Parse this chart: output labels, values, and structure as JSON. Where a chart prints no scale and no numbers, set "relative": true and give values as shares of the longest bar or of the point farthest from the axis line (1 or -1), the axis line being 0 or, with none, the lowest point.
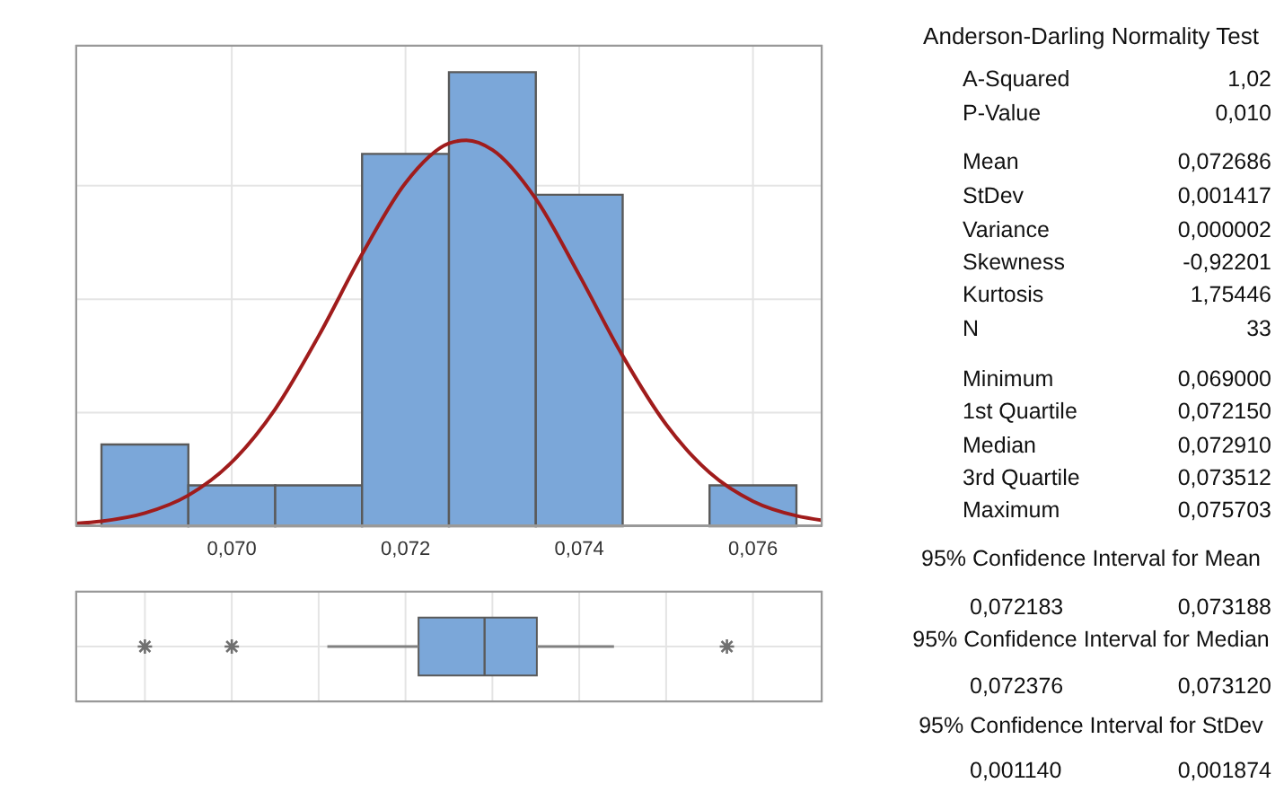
{
  "chart_data": [
    {
      "type": "histogram",
      "relative": true,
      "bins": [
        0.0685,
        0.0695,
        0.0705,
        0.0715,
        0.0725,
        0.0735,
        0.0745,
        0.0755,
        0.0765
      ],
      "values": [
        0.18,
        0.09,
        0.09,
        0.82,
        1,
        0.73,
        0,
        0.09
      ],
      "color": "#7ba7d9",
      "xlim": [
        0.0682,
        0.0768
      ],
      "xticks": [
        {
          "value": 0.07,
          "label": "0,070"
        },
        {
          "value": 0.072,
          "label": "0,072"
        },
        {
          "value": 0.074,
          "label": "0,074"
        },
        {
          "value": 0.076,
          "label": "0,076"
        }
      ],
      "grid": true,
      "series": [
        {
          "type": "line",
          "color": "#a01c1c",
          "x": [
            0.0682,
            0.0685,
            0.069,
            0.0695,
            0.07,
            0.0705,
            0.071,
            0.0715,
            0.072,
            0.0725,
            0.0727,
            0.073,
            0.0735,
            0.074,
            0.0745,
            0.075,
            0.0755,
            0.076,
            0.0765,
            0.0768
          ],
          "values": [
            0.006,
            0.011,
            0.029,
            0.068,
            0.141,
            0.258,
            0.419,
            0.599,
            0.756,
            0.843,
            0.85,
            0.829,
            0.721,
            0.553,
            0.375,
            0.224,
            0.118,
            0.055,
            0.023,
            0.013
          ]
        }
      ]
    },
    {
      "type": "box",
      "orientation": "horizontal",
      "categories": [
        null
      ],
      "color": "#7ba7d9",
      "boxes": [
        {
          "low": 0.0711,
          "q1": 0.07215,
          "median": 0.07291,
          "q3": 0.073512,
          "high": 0.0744,
          "outliers": [
            0.069,
            0.07,
            0.0757
          ]
        }
      ],
      "xlim": [
        0.0682,
        0.0768
      ],
      "xticks": [
        {
          "value": 0.069,
          "label": null
        },
        {
          "value": 0.07,
          "label": null
        },
        {
          "value": 0.071,
          "label": null
        },
        {
          "value": 0.072,
          "label": null
        },
        {
          "value": 0.073,
          "label": null
        },
        {
          "value": 0.074,
          "label": null
        },
        {
          "value": 0.075,
          "label": null
        },
        {
          "value": 0.076,
          "label": null
        }
      ],
      "tick_labels": false,
      "grid": true
    },
    {
      "type": "other",
      "title": "Anderson-Darling Normality Test",
      "annotations": [
        "A-Squared",
        "1,02",
        "P-Value",
        "0,010",
        "Mean",
        "0,072686",
        "StDev",
        "0,001417",
        "Variance",
        "0,000002",
        "Skewness",
        "-0,92201",
        "Kurtosis",
        "1,75446",
        "N",
        "33",
        "Minimum",
        "0,069000",
        "1st Quartile",
        "0,072150",
        "Median",
        "0,072910",
        "3rd Quartile",
        "0,073512",
        "Maximum",
        "0,075703",
        "95% Confidence Interval for Mean",
        "0,072183",
        "0,073188",
        "95% Confidence Interval for Median",
        "0,072376",
        "0,073120",
        "95% Confidence Interval for StDev",
        "0,001140",
        "0,001874"
      ]
    }
  ]
}
